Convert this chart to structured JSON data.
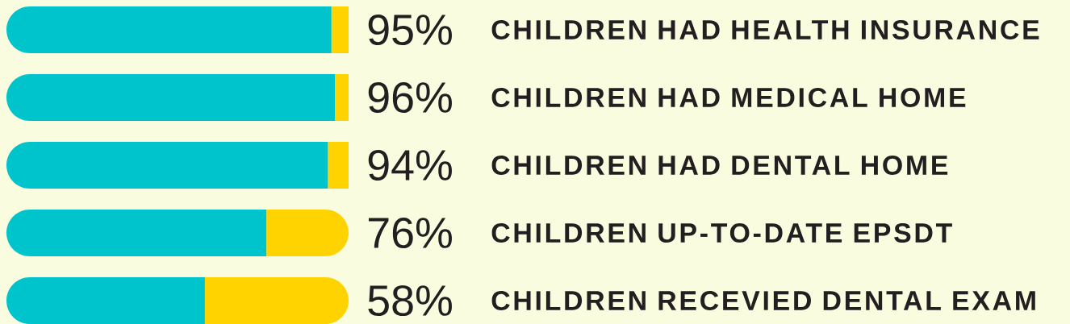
{
  "chart_data": {
    "type": "bar",
    "orientation": "horizontal",
    "stacked": true,
    "categories": [
      "CHILDREN HAD HEALTH INSURANCE",
      "CHILDREN HAD MEDICAL HOME",
      "CHILDREN HAD DENTAL HOME",
      "CHILDREN UP-TO-DATE EPSDT",
      "CHILDREN RECEVIED DENTAL EXAM"
    ],
    "series": [
      {
        "color": "#00c4cc",
        "values": [
          95,
          96,
          94,
          76,
          58
        ],
        "value_labels": [
          "95%",
          "96%",
          "94%",
          "76%",
          "58%"
        ]
      },
      {
        "color": "#ffd300",
        "values": [
          5,
          4,
          6,
          24,
          42
        ]
      }
    ]
  }
}
